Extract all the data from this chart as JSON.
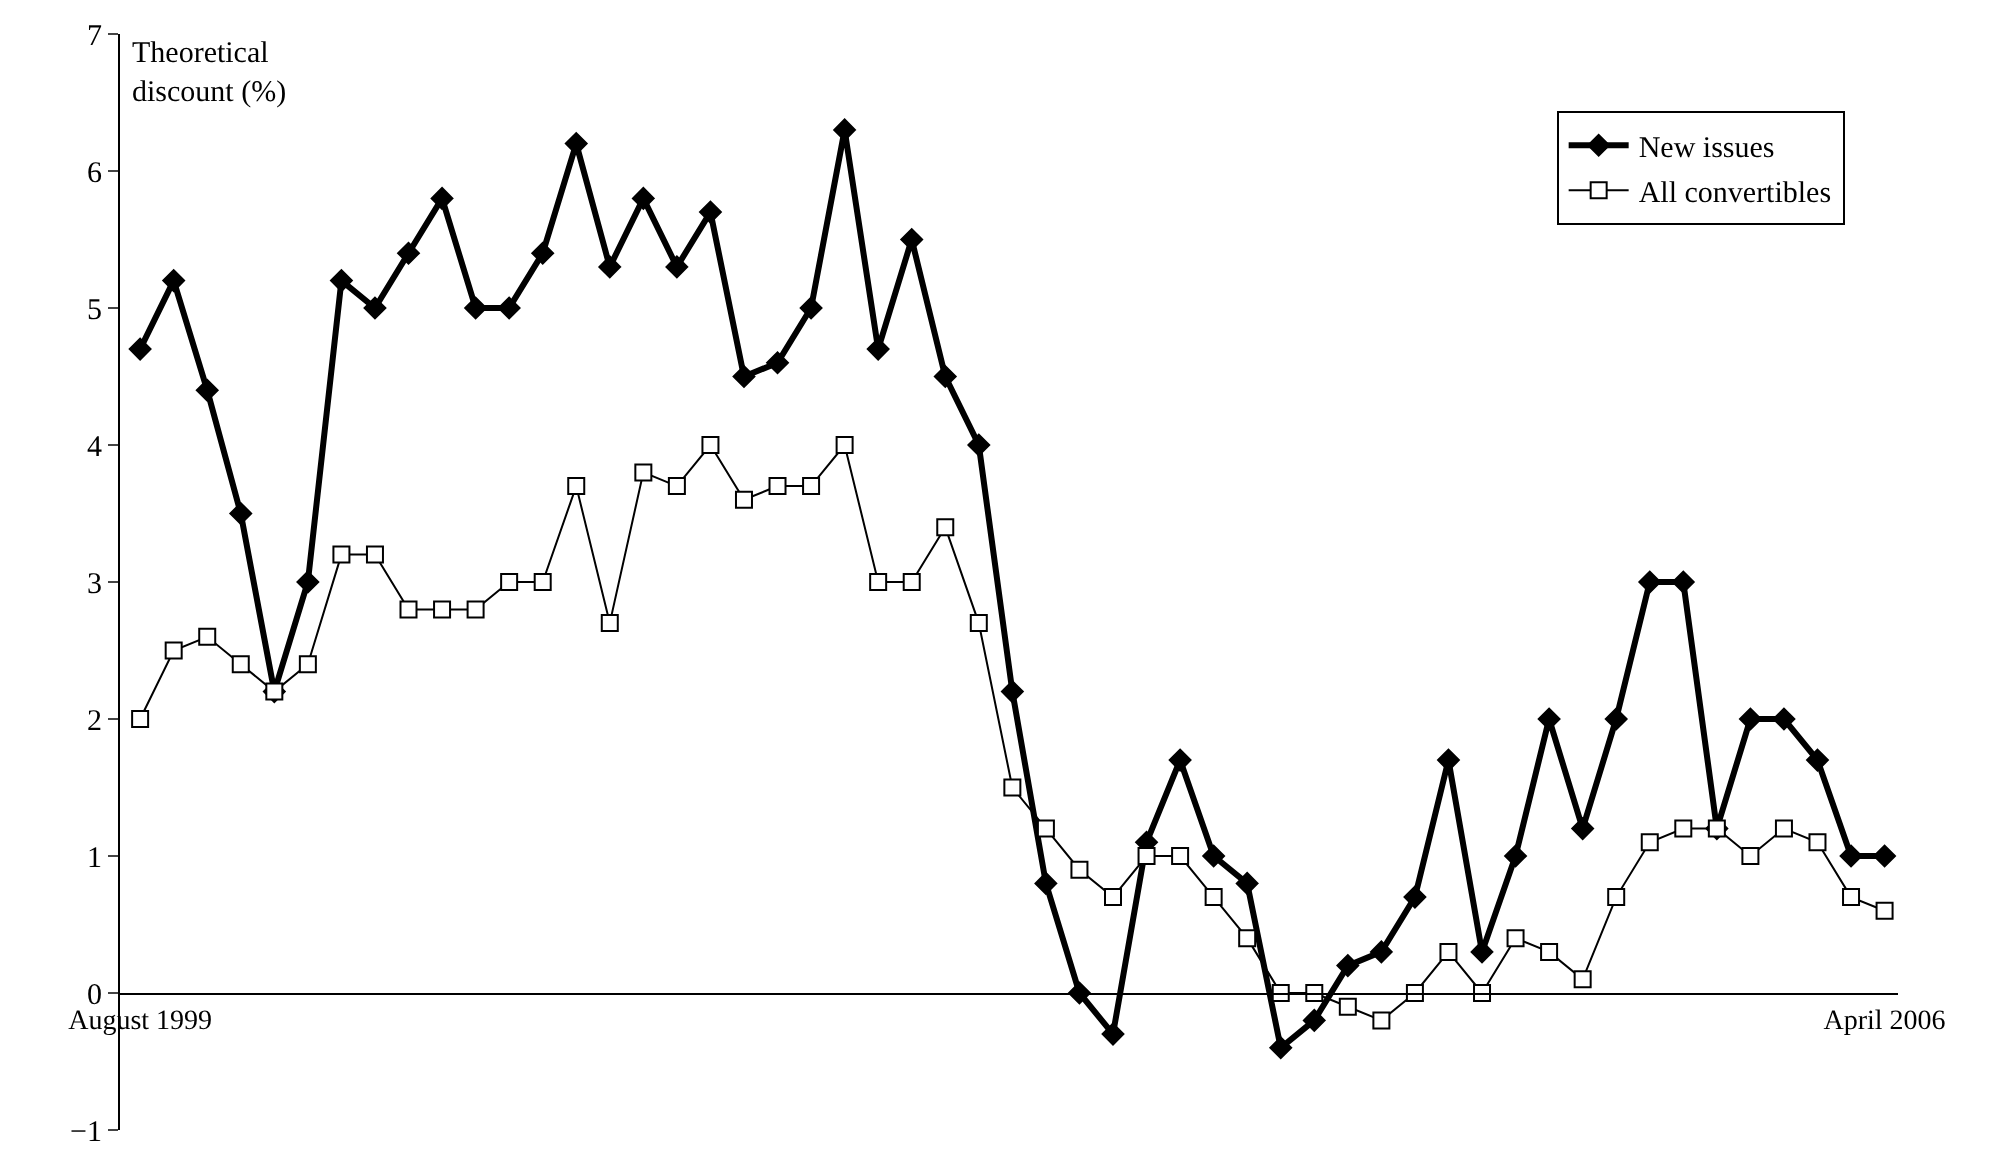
{
  "chart_data": {
    "type": "line",
    "ylabel": "Theoretical\ndiscount (%)",
    "categories": [
      "August 1999",
      null,
      null,
      null,
      null,
      null,
      null,
      null,
      null,
      null,
      null,
      null,
      null,
      null,
      null,
      null,
      null,
      null,
      null,
      null,
      null,
      null,
      null,
      null,
      null,
      null,
      null,
      null,
      null,
      null,
      null,
      null,
      null,
      null,
      null,
      null,
      null,
      null,
      null,
      null,
      null,
      null,
      null,
      null,
      null,
      null,
      null,
      null,
      null,
      null,
      null,
      null,
      "April 2006"
    ],
    "series": [
      {
        "name": "New issues",
        "color": "#000000",
        "marker": "diamond",
        "values": [
          4.7,
          5.2,
          4.4,
          3.5,
          2.2,
          3.0,
          5.2,
          5.0,
          5.4,
          5.8,
          5.0,
          5.0,
          5.4,
          6.2,
          5.3,
          5.8,
          5.3,
          5.7,
          4.5,
          4.6,
          5.0,
          6.3,
          4.7,
          5.5,
          4.5,
          4.0,
          2.2,
          0.8,
          0.0,
          -0.3,
          1.1,
          1.7,
          1.0,
          0.8,
          -0.4,
          -0.2,
          0.2,
          0.3,
          0.7,
          1.7,
          0.3,
          1.0,
          2.0,
          1.2,
          2.0,
          3.0,
          3.0,
          1.2,
          2.0,
          2.0,
          1.7,
          1.0,
          1.0
        ]
      },
      {
        "name": "All convertibles",
        "color": "#000000",
        "marker": "square",
        "values": [
          2.0,
          2.5,
          2.6,
          2.4,
          2.2,
          2.4,
          3.2,
          3.2,
          2.8,
          2.8,
          2.8,
          3.0,
          3.0,
          3.7,
          2.7,
          3.8,
          3.7,
          4.0,
          3.6,
          3.7,
          3.7,
          4.0,
          3.0,
          3.0,
          3.4,
          2.7,
          1.5,
          1.2,
          0.9,
          0.7,
          1.0,
          1.0,
          0.7,
          0.4,
          0.0,
          0.0,
          -0.1,
          -0.2,
          0.0,
          0.3,
          0.0,
          0.4,
          0.3,
          0.1,
          0.7,
          1.1,
          1.2,
          1.2,
          1.0,
          1.2,
          1.1,
          0.7,
          0.6
        ]
      }
    ],
    "ylim": [
      -1,
      7
    ],
    "yticks": [
      {
        "value": -1,
        "label": "−1"
      },
      0,
      1,
      2,
      3,
      4,
      5,
      6,
      7
    ],
    "legend": "top right"
  }
}
